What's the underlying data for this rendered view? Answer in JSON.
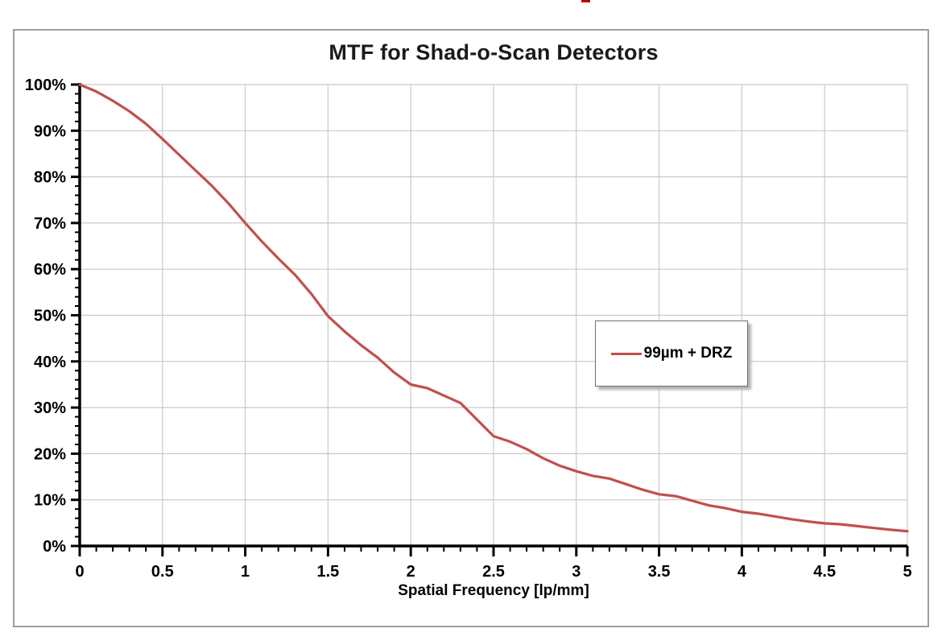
{
  "chart_data": {
    "type": "line",
    "title": "MTF for Shad-o-Scan Detectors",
    "xlabel": "Spatial Frequency [lp/mm]",
    "ylabel": "",
    "xlim": [
      0,
      5
    ],
    "ylim": [
      0,
      100
    ],
    "grid": true,
    "legend_position": "inside-center-right",
    "x_major_ticks": [
      0,
      0.5,
      1,
      1.5,
      2,
      2.5,
      3,
      3.5,
      4,
      4.5,
      5
    ],
    "x_tick_labels": [
      "0",
      "0.5",
      "1",
      "1.5",
      "2",
      "2.5",
      "3",
      "3.5",
      "4",
      "4.5",
      "5"
    ],
    "x_minor_step": 0.1,
    "y_major_ticks": [
      0,
      10,
      20,
      30,
      40,
      50,
      60,
      70,
      80,
      90,
      100
    ],
    "y_tick_labels": [
      "0%",
      "10%",
      "20%",
      "30%",
      "40%",
      "50%",
      "60%",
      "70%",
      "80%",
      "90%",
      "100%"
    ],
    "y_minor_step": 2,
    "series": [
      {
        "name": "99µm + DRZ",
        "color": "#C0504D",
        "x": [
          0,
          0.1,
          0.2,
          0.3,
          0.4,
          0.5,
          0.6,
          0.7,
          0.8,
          0.9,
          1,
          1.1,
          1.2,
          1.3,
          1.4,
          1.5,
          1.6,
          1.7,
          1.8,
          1.9,
          2,
          2.1,
          2.2,
          2.3,
          2.4,
          2.5,
          2.6,
          2.7,
          2.8,
          2.9,
          3,
          3.1,
          3.2,
          3.3,
          3.4,
          3.5,
          3.6,
          3.7,
          3.8,
          3.9,
          4,
          4.1,
          4.2,
          4.3,
          4.4,
          4.5,
          4.6,
          4.7,
          4.8,
          4.9,
          5
        ],
        "y": [
          100,
          98.5,
          96.5,
          94.2,
          91.5,
          88.2,
          84.8,
          81.4,
          78,
          74.2,
          70,
          66,
          62.3,
          58.8,
          54.6,
          49.8,
          46.5,
          43.5,
          40.8,
          37.6,
          35,
          34.2,
          32.6,
          31,
          27.4,
          23.8,
          22.6,
          21,
          19,
          17.4,
          16.2,
          15.2,
          14.6,
          13.4,
          12.2,
          11.2,
          10.8,
          9.8,
          8.8,
          8.2,
          7.4,
          7,
          6.4,
          5.8,
          5.3,
          4.9,
          4.7,
          4.3,
          3.9,
          3.5,
          3.2
        ]
      }
    ]
  },
  "colors": {
    "series": "#C0504D",
    "gridline": "#C9C9C9",
    "axis": "#000000",
    "frame_border": "#9E9E9E",
    "legend_border": "#6E6E6E",
    "title_text": "#1A1A1A"
  }
}
